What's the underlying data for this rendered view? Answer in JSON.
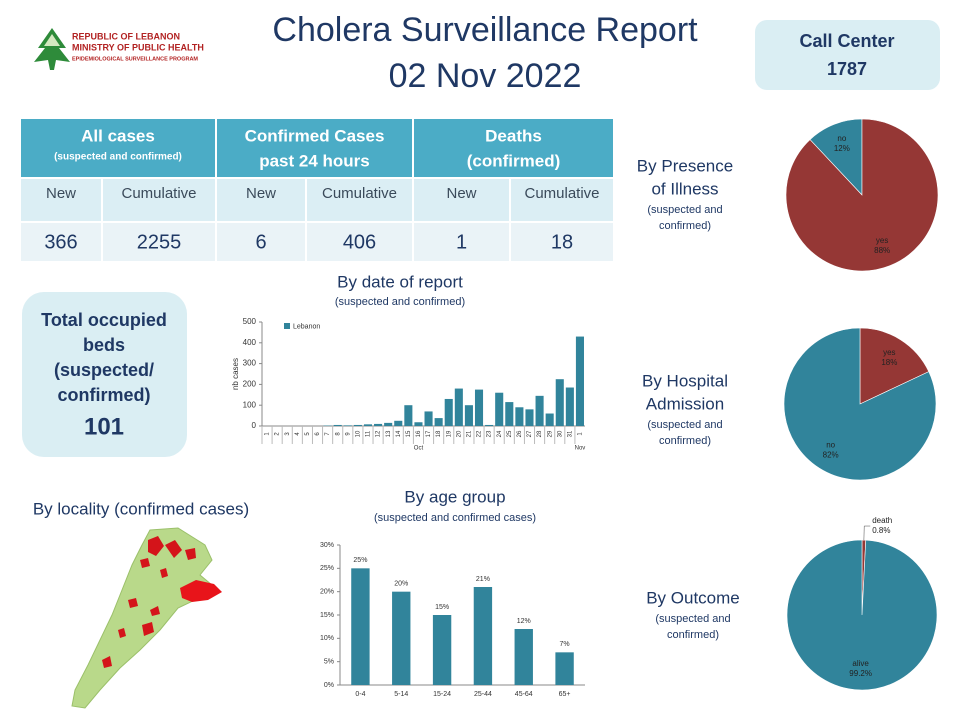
{
  "header": {
    "org_lines": [
      "REPUBLIC OF LEBANON",
      "MINISTRY OF PUBLIC HEALTH",
      "EPIDEMIOLOGICAL SURVEILLANCE PROGRAM"
    ],
    "title": "Cholera Surveillance Report",
    "date": "02 Nov 2022"
  },
  "call_center": {
    "label": "Call Center",
    "number": "1787"
  },
  "table": {
    "groups": [
      {
        "label_lines": [
          "All cases"
        ],
        "note": "(suspected and confirmed)"
      },
      {
        "label_lines": [
          "Confirmed Cases",
          "past 24 hours"
        ]
      },
      {
        "label_lines": [
          "Deaths",
          "(confirmed)"
        ]
      }
    ],
    "columns": [
      "New",
      "Cumulative",
      "New",
      "Cumulative",
      "New",
      "Cumulative"
    ],
    "values": [
      366,
      2255,
      6,
      406,
      1,
      18
    ]
  },
  "beds": {
    "label_lines": [
      "Total occupied",
      "beds",
      "(suspected/",
      "confirmed)"
    ],
    "value": 101
  },
  "locality": {
    "title": "By locality (confirmed cases)"
  },
  "chart_data": [
    {
      "type": "bar",
      "title": "By date of report",
      "subtitle": "(suspected and confirmed)",
      "y_label": "nb cases",
      "categories": [
        "1",
        "2",
        "3",
        "4",
        "5",
        "6",
        "7",
        "8",
        "9",
        "10",
        "11",
        "12",
        "13",
        "14",
        "15",
        "16",
        "17",
        "18",
        "19",
        "20",
        "21",
        "22",
        "23",
        "24",
        "25",
        "26",
        "27",
        "28",
        "29",
        "30",
        "31",
        "1"
      ],
      "month_labels": [
        "Oct",
        "Nov"
      ],
      "series": [
        {
          "name": "Lebanon",
          "color": "#31849b",
          "values": [
            0,
            0,
            0,
            0,
            0,
            0,
            2,
            5,
            3,
            5,
            8,
            10,
            15,
            25,
            100,
            18,
            70,
            38,
            130,
            180,
            100,
            175,
            5,
            160,
            115,
            90,
            80,
            145,
            60,
            225,
            185,
            430
          ]
        }
      ],
      "ylim": [
        0,
        500
      ],
      "yticks": [
        0,
        100,
        200,
        300,
        400,
        500
      ],
      "legend": "top-left"
    },
    {
      "type": "pie",
      "title_lines": [
        "By Presence",
        "of Illness"
      ],
      "subtitle_lines": [
        "(suspected and",
        "confirmed)"
      ],
      "categories": [
        "no",
        "yes"
      ],
      "values": [
        12,
        88
      ],
      "value_labels": [
        "12%",
        "88%"
      ],
      "colors": [
        "#31849b",
        "#953735"
      ]
    },
    {
      "type": "pie",
      "title_lines": [
        "By Hospital",
        "Admission"
      ],
      "subtitle_lines": [
        "(suspected and",
        "confirmed)"
      ],
      "categories": [
        "yes",
        "no"
      ],
      "values": [
        18,
        82
      ],
      "value_labels": [
        "18%",
        "82%"
      ],
      "colors": [
        "#953735",
        "#31849b"
      ]
    },
    {
      "type": "pie",
      "title_lines": [
        "By Outcome"
      ],
      "subtitle_lines": [
        "(suspected and",
        "confirmed)"
      ],
      "categories": [
        "death",
        "alive"
      ],
      "values": [
        0.8,
        99.2
      ],
      "value_labels": [
        "0.8%",
        "99.2%"
      ],
      "colors": [
        "#953735",
        "#31849b"
      ]
    },
    {
      "type": "bar",
      "title": "By age group",
      "subtitle": "(suspected and confirmed cases)",
      "categories": [
        "0-4",
        "5-14",
        "15-24",
        "25-44",
        "45-64",
        "65+"
      ],
      "series": [
        {
          "color": "#31849b",
          "values": [
            25,
            20,
            15,
            21,
            12,
            7
          ],
          "value_labels": [
            "25%",
            "20%",
            "15%",
            "21%",
            "12%",
            "7%"
          ]
        }
      ],
      "ylim": [
        0,
        30
      ],
      "yticks": [
        {
          "value": 0,
          "label": "0%"
        },
        {
          "value": 5,
          "label": "5%"
        },
        {
          "value": 10,
          "label": "10%"
        },
        {
          "value": 15,
          "label": "15%"
        },
        {
          "value": 20,
          "label": "20%"
        },
        {
          "value": 25,
          "label": "25%"
        },
        {
          "value": 30,
          "label": "30%"
        }
      ]
    }
  ]
}
